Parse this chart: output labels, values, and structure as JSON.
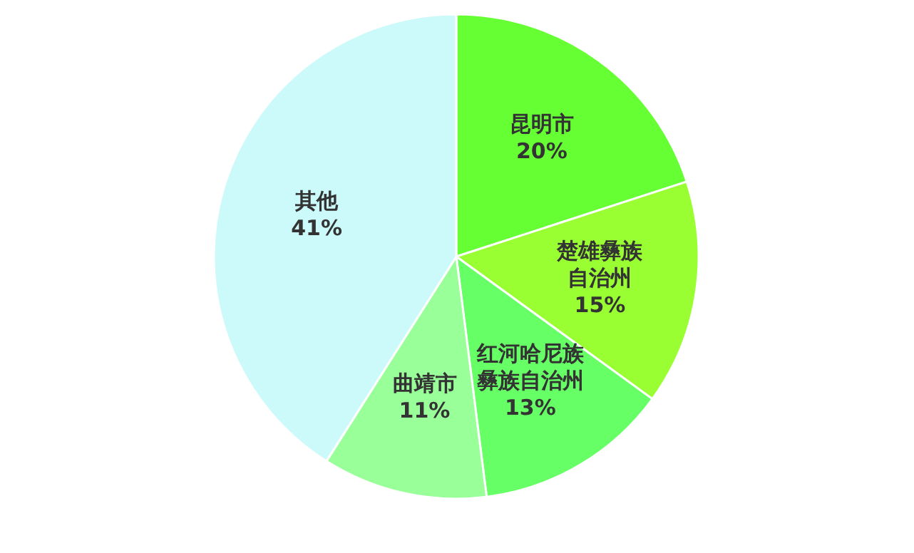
{
  "chart_data": {
    "type": "pie",
    "categories": [
      "昆明市",
      "楚雄彝族自治州",
      "红河哈尼族彝族自治州",
      "曲靖市",
      "其他"
    ],
    "values": [
      20,
      15,
      13,
      11,
      41
    ],
    "colors": [
      "#66ff33",
      "#99ff33",
      "#66ff66",
      "#99ff99",
      "#ccf9f9"
    ],
    "value_labels": [
      "20%",
      "15%",
      "13%",
      "11%",
      "41%"
    ]
  }
}
